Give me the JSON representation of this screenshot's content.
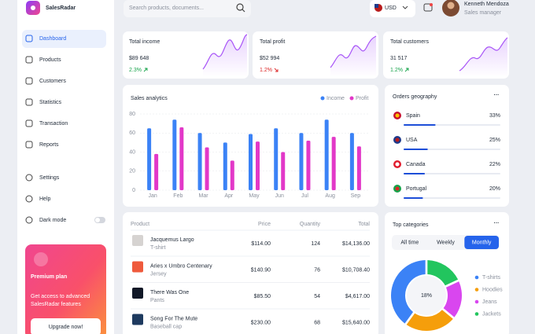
{
  "brand": "SalesRadar",
  "search_placeholder": "Search products, documents...",
  "currency": "USD",
  "user": {
    "name": "Kenneth Mendoza",
    "role": "Sales manager"
  },
  "nav": {
    "main": [
      "Dashboard",
      "Products",
      "Customers",
      "Statistics",
      "Transaction",
      "Reports"
    ],
    "active": 0,
    "secondary": [
      "Settings",
      "Help",
      "Dark mode"
    ]
  },
  "premium": {
    "title": "Premium plan",
    "text": [
      "Get access to advanced",
      "SalesRadar features"
    ],
    "button": "Upgrade now!"
  },
  "stats": [
    {
      "title": "Total income",
      "value": "$89 648",
      "change": "2.3%",
      "trend": "up"
    },
    {
      "title": "Total profit",
      "value": "$52 994",
      "change": "1.2%",
      "trend": "down"
    },
    {
      "title": "Total customers",
      "value": "31 517",
      "change": "1.2%",
      "trend": "up"
    }
  ],
  "sales_analytics": {
    "type": "bar",
    "title": "Sales analytics",
    "categories": [
      "Jan",
      "Feb",
      "Mar",
      "Apr",
      "May",
      "Jun",
      "Jul",
      "Aug",
      "Sep"
    ],
    "series": [
      {
        "name": "Income",
        "color": "#3b82f6",
        "values": [
          65,
          74,
          60,
          50,
          59,
          65,
          60,
          74,
          60
        ]
      },
      {
        "name": "Profit",
        "color": "#e238c8",
        "values": [
          38,
          66,
          45,
          31,
          51,
          40,
          52,
          56,
          46
        ]
      }
    ],
    "ylim": [
      0,
      80
    ],
    "yticks": [
      0,
      20,
      40,
      60,
      80
    ],
    "grid": true
  },
  "orders_geography": {
    "title": "Orders geography",
    "color": "#1d4ed8",
    "rows": [
      {
        "country": "Spain",
        "value": 33,
        "label": "33%"
      },
      {
        "country": "USA",
        "value": 25,
        "label": "25%"
      },
      {
        "country": "Canada",
        "value": 22,
        "label": "22%"
      },
      {
        "country": "Portugal",
        "value": 20,
        "label": "20%"
      }
    ]
  },
  "products_table": {
    "columns": [
      "Product",
      "Price",
      "Quantity",
      "Total"
    ],
    "rows": [
      {
        "name": "Jacquemus Largo",
        "category": "T-shirt",
        "price": "$114.00",
        "quantity": 124,
        "total": "$14,136.00"
      },
      {
        "name": "Aries x Umbro Centenary",
        "category": "Jersey",
        "price": "$140.90",
        "quantity": 76,
        "total": "$10,708.40"
      },
      {
        "name": "There Was One",
        "category": "Pants",
        "price": "$85.50",
        "quantity": 54,
        "total": "$4,617.00"
      },
      {
        "name": "Song For The Mute",
        "category": "Baseball cap",
        "price": "$230.00",
        "quantity": 68,
        "total": "$15,640.00"
      }
    ]
  },
  "top_categories": {
    "type": "pie",
    "title": "Top categories",
    "tabs": [
      "All time",
      "Weekly",
      "Monthly"
    ],
    "active_tab": 2,
    "center_label": "18%",
    "categories": [
      "T-shirts",
      "Hoodies",
      "Jeans",
      "Jackets"
    ],
    "colors": [
      "#3b82f6",
      "#f59e0b",
      "#d946ef",
      "#22c55e"
    ],
    "values": [
      40,
      24,
      18,
      18
    ]
  }
}
